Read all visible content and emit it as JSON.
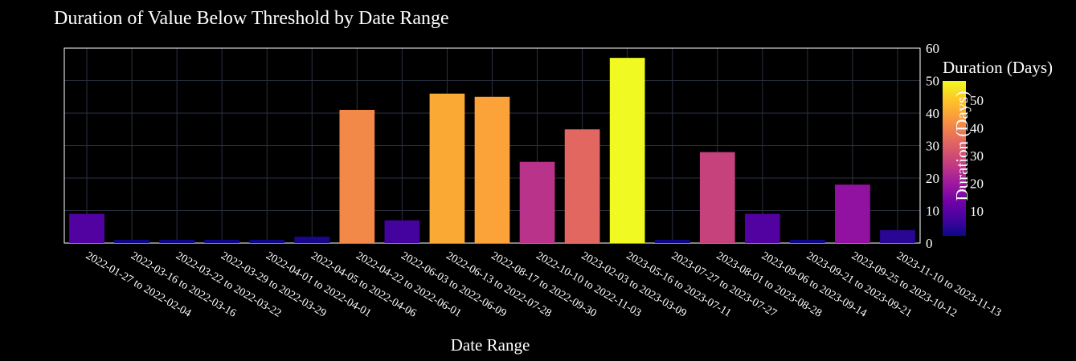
{
  "chart_data": {
    "type": "bar",
    "title": "Duration of Value Below Threshold by Date Range",
    "xlabel": "Date Range",
    "ylabel": "Duration (Days)",
    "ylim": [
      0,
      60
    ],
    "yticks": [
      0,
      10,
      20,
      30,
      40,
      50,
      60
    ],
    "grid": true,
    "categories": [
      "2022-01-27 to 2022-02-04",
      "2022-03-16 to 2022-03-16",
      "2022-03-22 to 2022-03-22",
      "2022-03-29 to 2022-03-29",
      "2022-04-01 to 2022-04-01",
      "2022-04-05 to 2022-04-06",
      "2022-04-22 to 2022-06-01",
      "2022-06-03 to 2022-06-09",
      "2022-06-13 to 2022-07-28",
      "2022-08-17 to 2022-09-30",
      "2022-10-10 to 2022-11-03",
      "2023-02-03 to 2023-03-09",
      "2023-05-16 to 2023-07-11",
      "2023-07-27 to 2023-07-27",
      "2023-08-01 to 2023-08-28",
      "2023-09-06 to 2023-09-14",
      "2023-09-21 to 2023-09-21",
      "2023-09-25 to 2023-10-12",
      "2023-11-10 to 2023-11-13"
    ],
    "values": [
      9,
      1,
      1,
      1,
      1,
      2,
      41,
      7,
      46,
      45,
      25,
      35,
      57,
      1,
      28,
      9,
      1,
      18,
      4
    ],
    "colorbar": {
      "title": "Duration (Days)",
      "range": [
        1,
        57
      ],
      "ticks": [
        10,
        20,
        30,
        40,
        50
      ],
      "colorscale": "plasma",
      "placement": "right"
    }
  }
}
